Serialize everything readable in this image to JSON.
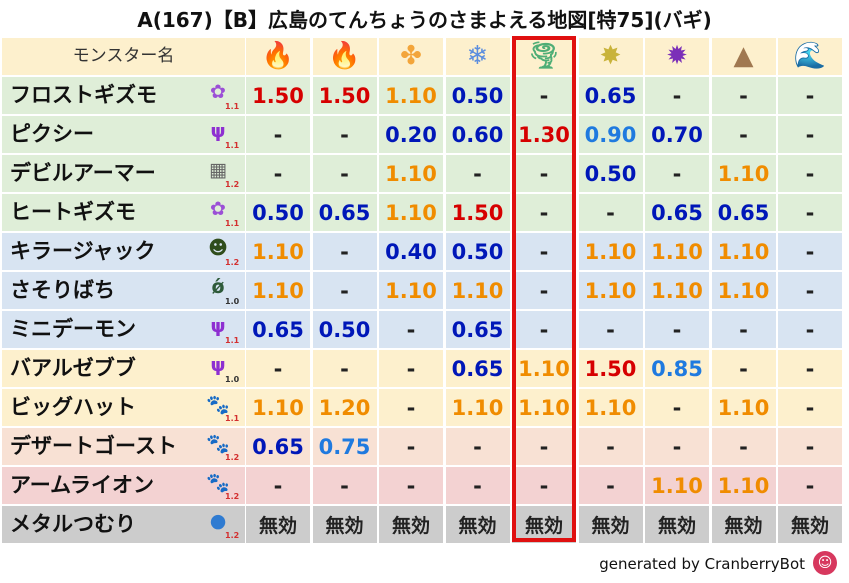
{
  "title": "A(167)【B】広島のてんちょうのさまよえる地図[特75](バギ)",
  "header": {
    "monster_label": "モンスター名",
    "elements": [
      {
        "name": "fire",
        "glyph": "🔥",
        "color": "#e53935"
      },
      {
        "name": "flame",
        "glyph": "🔥",
        "color": "#f4511e"
      },
      {
        "name": "leaf",
        "glyph": "✤",
        "color": "#f3a53a"
      },
      {
        "name": "ice",
        "glyph": "❄",
        "color": "#5c8ede"
      },
      {
        "name": "wind",
        "glyph": "🌪",
        "color": "#4fae76"
      },
      {
        "name": "light",
        "glyph": "✸",
        "color": "#c9b33a"
      },
      {
        "name": "dark",
        "glyph": "✹",
        "color": "#7b2fb8"
      },
      {
        "name": "earth",
        "glyph": "▲",
        "color": "#a07850"
      },
      {
        "name": "water",
        "glyph": "🌊",
        "color": "#2f7bd1"
      }
    ]
  },
  "colors": {
    "red": "#d60000",
    "orange": "#f08c00",
    "navy": "#0017b8",
    "blue": "#1f7adf",
    "dash": "#222222",
    "row_green": "#dfeed8",
    "row_blue": "#d8e4f2",
    "row_yellow": "#fdf0cd",
    "row_peach": "#f8e1d4",
    "row_pink": "#f3d2d2",
    "row_gray": "#cccccc"
  },
  "rows": [
    {
      "name": "フロストギズモ",
      "icon": "gizmo",
      "glyph": "✿",
      "icon_color": "#9b4fd6",
      "ver": "1.1",
      "ver_red": true,
      "bg": "row_green",
      "cells": [
        {
          "v": "1.50",
          "c": "red"
        },
        {
          "v": "1.50",
          "c": "red"
        },
        {
          "v": "1.10",
          "c": "orange"
        },
        {
          "v": "0.50",
          "c": "navy"
        },
        {
          "v": "-",
          "c": "dash"
        },
        {
          "v": "0.65",
          "c": "navy"
        },
        {
          "v": "-",
          "c": "dash"
        },
        {
          "v": "-",
          "c": "dash"
        },
        {
          "v": "-",
          "c": "dash"
        }
      ]
    },
    {
      "name": "ピクシー",
      "icon": "trident",
      "glyph": "ψ",
      "icon_color": "#8e2fd1",
      "ver": "1.1",
      "ver_red": true,
      "bg": "row_green",
      "cells": [
        {
          "v": "-",
          "c": "dash"
        },
        {
          "v": "-",
          "c": "dash"
        },
        {
          "v": "0.20",
          "c": "navy"
        },
        {
          "v": "0.60",
          "c": "navy"
        },
        {
          "v": "1.30",
          "c": "red"
        },
        {
          "v": "0.90",
          "c": "blue"
        },
        {
          "v": "0.70",
          "c": "navy"
        },
        {
          "v": "-",
          "c": "dash"
        },
        {
          "v": "-",
          "c": "dash"
        }
      ]
    },
    {
      "name": "デビルアーマー",
      "icon": "brick",
      "glyph": "▦",
      "icon_color": "#666666",
      "ver": "1.2",
      "ver_red": true,
      "bg": "row_green",
      "cells": [
        {
          "v": "-",
          "c": "dash"
        },
        {
          "v": "-",
          "c": "dash"
        },
        {
          "v": "1.10",
          "c": "orange"
        },
        {
          "v": "-",
          "c": "dash"
        },
        {
          "v": "-",
          "c": "dash"
        },
        {
          "v": "0.50",
          "c": "navy"
        },
        {
          "v": "-",
          "c": "dash"
        },
        {
          "v": "1.10",
          "c": "orange"
        },
        {
          "v": "-",
          "c": "dash"
        }
      ]
    },
    {
      "name": "ヒートギズモ",
      "icon": "gizmo",
      "glyph": "✿",
      "icon_color": "#9b4fd6",
      "ver": "1.1",
      "ver_red": true,
      "bg": "row_green",
      "cells": [
        {
          "v": "0.50",
          "c": "navy"
        },
        {
          "v": "0.65",
          "c": "navy"
        },
        {
          "v": "1.10",
          "c": "orange"
        },
        {
          "v": "1.50",
          "c": "red"
        },
        {
          "v": "-",
          "c": "dash"
        },
        {
          "v": "-",
          "c": "dash"
        },
        {
          "v": "0.65",
          "c": "navy"
        },
        {
          "v": "0.65",
          "c": "navy"
        },
        {
          "v": "-",
          "c": "dash"
        }
      ]
    },
    {
      "name": "キラージャック",
      "icon": "skull",
      "glyph": "☻",
      "icon_color": "#2f4d1c",
      "ver": "1.2",
      "ver_red": true,
      "bg": "row_blue",
      "cells": [
        {
          "v": "1.10",
          "c": "orange"
        },
        {
          "v": "-",
          "c": "dash"
        },
        {
          "v": "0.40",
          "c": "navy"
        },
        {
          "v": "0.50",
          "c": "navy"
        },
        {
          "v": "-",
          "c": "dash"
        },
        {
          "v": "1.10",
          "c": "orange"
        },
        {
          "v": "1.10",
          "c": "orange"
        },
        {
          "v": "1.10",
          "c": "orange"
        },
        {
          "v": "-",
          "c": "dash"
        }
      ]
    },
    {
      "name": "さそりばち",
      "icon": "bug",
      "glyph": "ǿ",
      "icon_color": "#2e5a3a",
      "ver": "1.0",
      "ver_red": false,
      "bg": "row_blue",
      "cells": [
        {
          "v": "1.10",
          "c": "orange"
        },
        {
          "v": "-",
          "c": "dash"
        },
        {
          "v": "1.10",
          "c": "orange"
        },
        {
          "v": "1.10",
          "c": "orange"
        },
        {
          "v": "-",
          "c": "dash"
        },
        {
          "v": "1.10",
          "c": "orange"
        },
        {
          "v": "1.10",
          "c": "orange"
        },
        {
          "v": "1.10",
          "c": "orange"
        },
        {
          "v": "-",
          "c": "dash"
        }
      ]
    },
    {
      "name": "ミニデーモン",
      "icon": "trident",
      "glyph": "ψ",
      "icon_color": "#8e2fd1",
      "ver": "1.1",
      "ver_red": true,
      "bg": "row_blue",
      "cells": [
        {
          "v": "0.65",
          "c": "navy"
        },
        {
          "v": "0.50",
          "c": "navy"
        },
        {
          "v": "-",
          "c": "dash"
        },
        {
          "v": "0.65",
          "c": "navy"
        },
        {
          "v": "-",
          "c": "dash"
        },
        {
          "v": "-",
          "c": "dash"
        },
        {
          "v": "-",
          "c": "dash"
        },
        {
          "v": "-",
          "c": "dash"
        },
        {
          "v": "-",
          "c": "dash"
        }
      ]
    },
    {
      "name": "バアルゼブブ",
      "icon": "trident",
      "glyph": "ψ",
      "icon_color": "#8e2fd1",
      "ver": "1.0",
      "ver_red": false,
      "bg": "row_yellow",
      "cells": [
        {
          "v": "-",
          "c": "dash"
        },
        {
          "v": "-",
          "c": "dash"
        },
        {
          "v": "-",
          "c": "dash"
        },
        {
          "v": "0.65",
          "c": "navy"
        },
        {
          "v": "1.10",
          "c": "orange"
        },
        {
          "v": "1.50",
          "c": "red"
        },
        {
          "v": "0.85",
          "c": "blue"
        },
        {
          "v": "-",
          "c": "dash"
        },
        {
          "v": "-",
          "c": "dash"
        }
      ]
    },
    {
      "name": "ビッグハット",
      "icon": "paw",
      "glyph": "🐾",
      "icon_color": "#e07a1f",
      "ver": "1.1",
      "ver_red": true,
      "bg": "row_yellow",
      "cells": [
        {
          "v": "1.10",
          "c": "orange"
        },
        {
          "v": "1.20",
          "c": "orange"
        },
        {
          "v": "-",
          "c": "dash"
        },
        {
          "v": "1.10",
          "c": "orange"
        },
        {
          "v": "1.10",
          "c": "orange"
        },
        {
          "v": "1.10",
          "c": "orange"
        },
        {
          "v": "-",
          "c": "dash"
        },
        {
          "v": "1.10",
          "c": "orange"
        },
        {
          "v": "-",
          "c": "dash"
        }
      ]
    },
    {
      "name": "デザートゴースト",
      "icon": "paw",
      "glyph": "🐾",
      "icon_color": "#e07a1f",
      "ver": "1.2",
      "ver_red": true,
      "bg": "row_peach",
      "cells": [
        {
          "v": "0.65",
          "c": "navy"
        },
        {
          "v": "0.75",
          "c": "blue"
        },
        {
          "v": "-",
          "c": "dash"
        },
        {
          "v": "-",
          "c": "dash"
        },
        {
          "v": "-",
          "c": "dash"
        },
        {
          "v": "-",
          "c": "dash"
        },
        {
          "v": "-",
          "c": "dash"
        },
        {
          "v": "-",
          "c": "dash"
        },
        {
          "v": "-",
          "c": "dash"
        }
      ]
    },
    {
      "name": "アームライオン",
      "icon": "paw",
      "glyph": "🐾",
      "icon_color": "#e07a1f",
      "ver": "1.2",
      "ver_red": true,
      "bg": "row_pink",
      "cells": [
        {
          "v": "-",
          "c": "dash"
        },
        {
          "v": "-",
          "c": "dash"
        },
        {
          "v": "-",
          "c": "dash"
        },
        {
          "v": "-",
          "c": "dash"
        },
        {
          "v": "-",
          "c": "dash"
        },
        {
          "v": "-",
          "c": "dash"
        },
        {
          "v": "1.10",
          "c": "orange"
        },
        {
          "v": "1.10",
          "c": "orange"
        },
        {
          "v": "-",
          "c": "dash"
        }
      ]
    },
    {
      "name": "メタルつむり",
      "icon": "slime",
      "glyph": "●",
      "icon_color": "#2f7bd1",
      "ver": "1.2",
      "ver_red": true,
      "bg": "row_gray",
      "cells": [
        {
          "v": "無効",
          "c": "dash"
        },
        {
          "v": "無効",
          "c": "dash"
        },
        {
          "v": "無効",
          "c": "dash"
        },
        {
          "v": "無効",
          "c": "dash"
        },
        {
          "v": "無効",
          "c": "dash"
        },
        {
          "v": "無効",
          "c": "dash"
        },
        {
          "v": "無効",
          "c": "dash"
        },
        {
          "v": "無効",
          "c": "dash"
        },
        {
          "v": "無効",
          "c": "dash"
        }
      ]
    }
  ],
  "footer": {
    "text": "generated by CranberryBot",
    "bot_glyph": "☺"
  }
}
